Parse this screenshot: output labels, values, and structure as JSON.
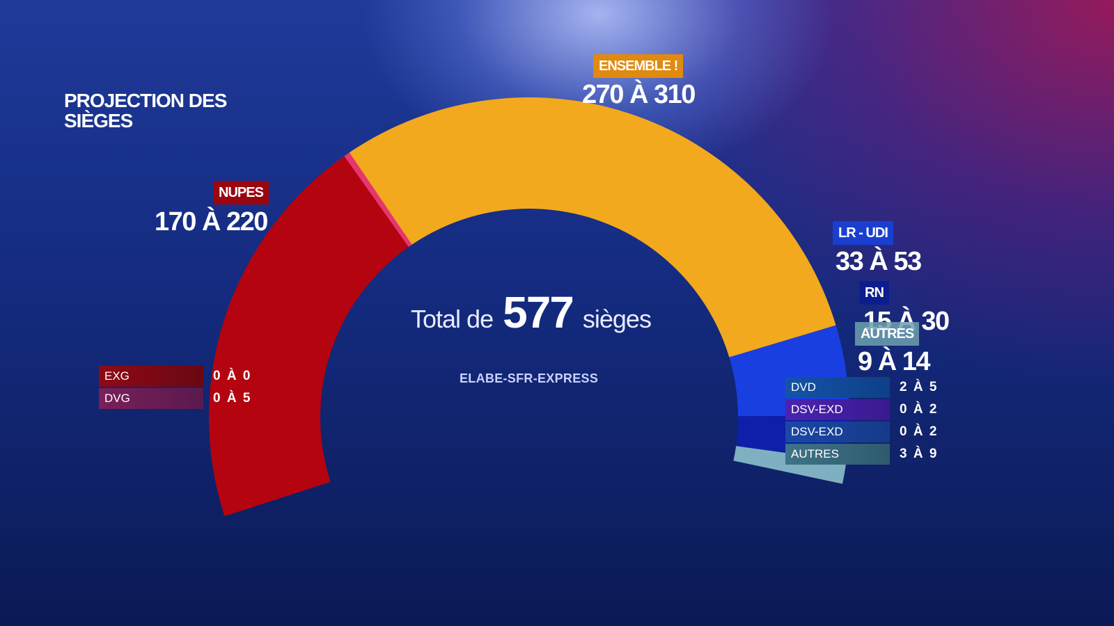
{
  "title": "PROJECTION DES SIÈGES",
  "total": {
    "prefix": "Total de",
    "value": "577",
    "suffix": "sièges"
  },
  "source": "ELABE-SFR-EXPRESS",
  "chart_data": {
    "type": "hemicycle",
    "total_seats": 577,
    "segments": [
      {
        "name": "NUPES",
        "range": "170 À 220",
        "estimate": 195,
        "color": "#b4040f"
      },
      {
        "name": "DVG",
        "estimate": 3,
        "color": "#e8356e"
      },
      {
        "name": "ENSEMBLE !",
        "range": "270 À 310",
        "estimate": 288,
        "color": "#f3a91d"
      },
      {
        "name": "LR - UDI",
        "range": "33 À 53",
        "estimate": 44,
        "color": "#1a3fe0"
      },
      {
        "name": "RN",
        "range": "15 À 30",
        "estimate": 22,
        "color": "#0f1fa8"
      },
      {
        "name": "AUTRES",
        "range": "9 À 14",
        "estimate": 11,
        "color": "#7fb0c2"
      }
    ],
    "left_details": [
      {
        "name": "EXG",
        "range": "0 À 0",
        "color": "#8e0a16"
      },
      {
        "name": "DVG",
        "range": "0 À 5",
        "color": "#7a1f5a"
      }
    ],
    "right_details": [
      {
        "name": "DVD",
        "range": "2 À 5",
        "color": "#1354a8"
      },
      {
        "name": "DSV-EXD",
        "range": "0 À 2",
        "color": "#4a23b0"
      },
      {
        "name": "DSV-EXD",
        "range": "0 À 2",
        "color": "#1b48a6"
      },
      {
        "name": "AUTRES",
        "range": "3 À 9",
        "color": "#3f7387"
      }
    ]
  }
}
